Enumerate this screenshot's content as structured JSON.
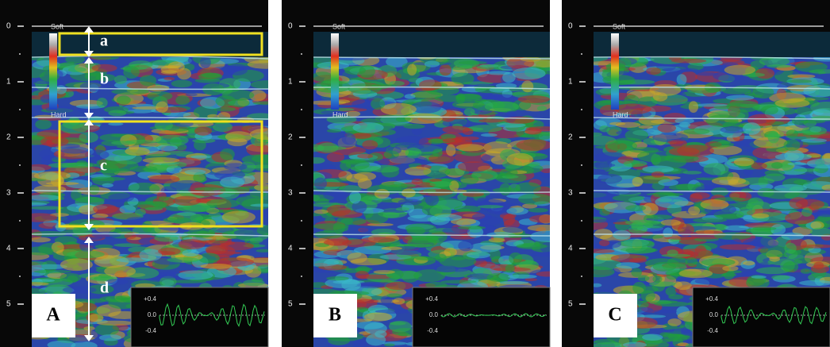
{
  "panels": [
    {
      "label": "A",
      "depth_ticks": [
        "0",
        "1",
        "2",
        "3",
        "4",
        "5"
      ],
      "scale": {
        "top": "Soft",
        "bottom": "Hard"
      },
      "waveform_ticks": [
        "+0.4",
        "0.0",
        "-0.4"
      ]
    },
    {
      "label": "B",
      "depth_ticks": [
        "0",
        "1",
        "2",
        "3",
        "4",
        "5"
      ],
      "scale": {
        "top": "Soft",
        "bottom": "Hard"
      },
      "waveform_ticks": [
        "+0.4",
        "0.0",
        "-0.4"
      ]
    },
    {
      "label": "C",
      "depth_ticks": [
        "0",
        "1",
        "2",
        "3",
        "4",
        "5"
      ],
      "scale": {
        "top": "Soft",
        "bottom": "Hard"
      },
      "waveform_ticks": [
        "+0.4",
        "0.0",
        "-0.4"
      ]
    }
  ],
  "annotations": [
    "a",
    "b",
    "c",
    "d"
  ]
}
